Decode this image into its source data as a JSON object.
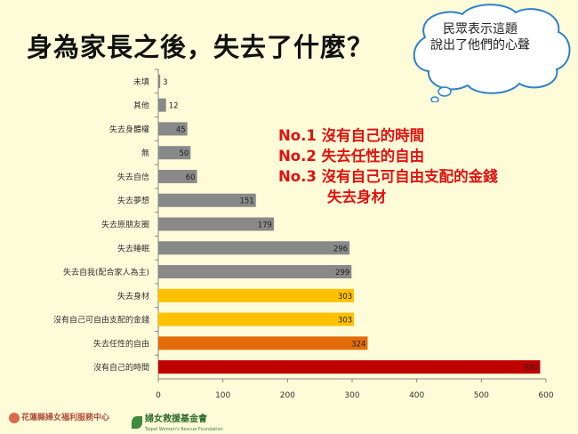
{
  "title": "身為家長之後，失去了什麼？",
  "bubble": {
    "line1": "民眾表示這題",
    "line2": "說出了他們的心聲"
  },
  "highlights": [
    "No.1 沒有自己的時間",
    "No.2 失去任性的自由",
    "No.3 沒有自己可自由支配的金錢",
    "失去身材"
  ],
  "footer": {
    "left_org": "花蓮縣婦女福利服務中心",
    "right_org": "婦女救援基金會",
    "right_org_en": "Taipei Women's Rescue Foundation"
  },
  "colors": {
    "gray": "#898989",
    "gold": "#ffc000",
    "orange": "#e46c0a",
    "red": "#c00000"
  },
  "chart_data": {
    "type": "bar",
    "orientation": "horizontal",
    "categories": [
      "未填",
      "其他",
      "失去身體權",
      "無",
      "失去自信",
      "失去夢想",
      "失去原朋友圈",
      "失去睡眠",
      "失去自我(配合家人為主)",
      "失去身材",
      "沒有自己可自由支配的金錢",
      "失去任性的自由",
      "沒有自己的時間"
    ],
    "values": [
      3,
      12,
      45,
      50,
      60,
      151,
      179,
      296,
      299,
      303,
      303,
      324,
      591
    ],
    "bar_colors": [
      "gray",
      "gray",
      "gray",
      "gray",
      "gray",
      "gray",
      "gray",
      "gray",
      "gray",
      "gold",
      "gold",
      "orange",
      "red"
    ],
    "xlim": [
      0,
      600
    ],
    "xticks": [
      0,
      100,
      200,
      300,
      400,
      500,
      600
    ],
    "data_labels": true,
    "grid": false
  }
}
